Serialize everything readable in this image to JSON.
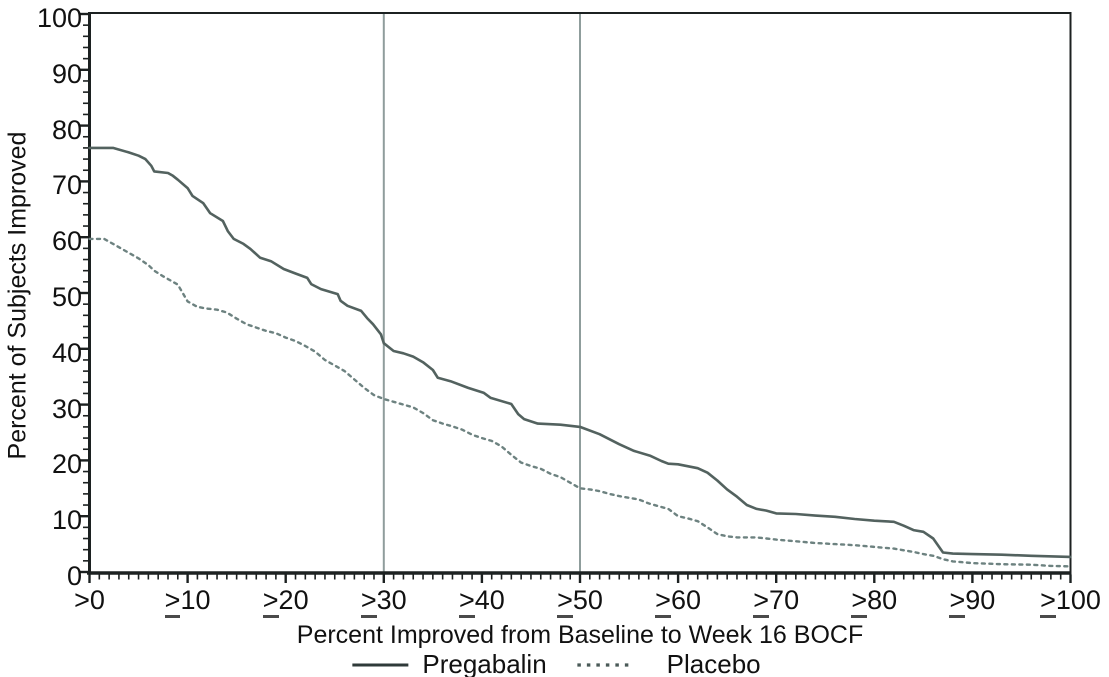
{
  "chart_data": {
    "type": "line",
    "title": "",
    "xlabel": "Percent Improved from Baseline to Week 16 BOCF",
    "ylabel": "Percent of Subjects Improved",
    "xlim": [
      0,
      100
    ],
    "ylim": [
      0,
      100
    ],
    "grid": false,
    "legend_position": "bottom-center",
    "x_major_ticks": [
      0,
      10,
      20,
      30,
      40,
      50,
      60,
      70,
      80,
      90,
      100
    ],
    "x_tick_labels": [
      {
        "prefix": ">",
        "gte": false,
        "text": "0"
      },
      {
        "prefix": ">",
        "gte": true,
        "text": "10"
      },
      {
        "prefix": ">",
        "gte": true,
        "text": "20"
      },
      {
        "prefix": ">",
        "gte": true,
        "text": "30"
      },
      {
        "prefix": ">",
        "gte": true,
        "text": "40"
      },
      {
        "prefix": ">",
        "gte": true,
        "text": "50"
      },
      {
        "prefix": ">",
        "gte": true,
        "text": "60"
      },
      {
        "prefix": ">",
        "gte": true,
        "text": "70"
      },
      {
        "prefix": ">",
        "gte": true,
        "text": "80"
      },
      {
        "prefix": ">",
        "gte": true,
        "text": "90"
      },
      {
        "prefix": ">",
        "gte": true,
        "text": "100"
      }
    ],
    "x_minor_step": 1,
    "y_major_ticks": [
      0,
      10,
      20,
      30,
      40,
      50,
      60,
      70,
      80,
      90,
      100
    ],
    "y_tick_labels": [
      "0",
      "10",
      "20",
      "30",
      "40",
      "50",
      "60",
      "70",
      "80",
      "90",
      "100"
    ],
    "y_minor_step": 2,
    "reference_lines_x": [
      30,
      50
    ],
    "reference_line_color": "#8f9d9c",
    "axis_color": "#1c2121",
    "text_color": "#111111",
    "series": [
      {
        "name": "Pregabalin",
        "style": "solid",
        "color": "#53625f",
        "legend_color": "#2f3a39",
        "points": [
          [
            0,
            76
          ],
          [
            2.4,
            76
          ],
          [
            4,
            75.2
          ],
          [
            5,
            74.6
          ],
          [
            5.7,
            74
          ],
          [
            6.3,
            72.8
          ],
          [
            6.6,
            71.8
          ],
          [
            8,
            71.5
          ],
          [
            8.5,
            71
          ],
          [
            9,
            70.3
          ],
          [
            10,
            68.8
          ],
          [
            10.5,
            67.4
          ],
          [
            11.6,
            66.1
          ],
          [
            12.3,
            64.3
          ],
          [
            13.6,
            62.9
          ],
          [
            14.1,
            61.1
          ],
          [
            14.7,
            59.7
          ],
          [
            15.7,
            58.8
          ],
          [
            16.4,
            57.9
          ],
          [
            17.4,
            56.3
          ],
          [
            18.5,
            55.7
          ],
          [
            19.8,
            54.3
          ],
          [
            21,
            53.5
          ],
          [
            22.2,
            52.7
          ],
          [
            22.6,
            51.6
          ],
          [
            23.6,
            50.7
          ],
          [
            25.3,
            49.8
          ],
          [
            25.6,
            48.6
          ],
          [
            26.3,
            47.7
          ],
          [
            27.7,
            46.8
          ],
          [
            28.3,
            45.5
          ],
          [
            28.9,
            44.4
          ],
          [
            29.7,
            42.6
          ],
          [
            30,
            41
          ],
          [
            31,
            39.6
          ],
          [
            32,
            39.2
          ],
          [
            33,
            38.6
          ],
          [
            34,
            37.6
          ],
          [
            35,
            36.2
          ],
          [
            35.5,
            34.8
          ],
          [
            36.8,
            34.2
          ],
          [
            38.6,
            33
          ],
          [
            40.2,
            32.1
          ],
          [
            40.9,
            31.2
          ],
          [
            43,
            30.1
          ],
          [
            43.7,
            28.3
          ],
          [
            44.3,
            27.4
          ],
          [
            45.7,
            26.6
          ],
          [
            48,
            26.4
          ],
          [
            50,
            26
          ],
          [
            52,
            24.7
          ],
          [
            54,
            22.9
          ],
          [
            55.5,
            21.7
          ],
          [
            57.2,
            20.8
          ],
          [
            58.3,
            19.9
          ],
          [
            59,
            19.4
          ],
          [
            60,
            19.3
          ],
          [
            62,
            18.6
          ],
          [
            63,
            17.8
          ],
          [
            64,
            16.4
          ],
          [
            65,
            14.8
          ],
          [
            66,
            13.5
          ],
          [
            67,
            12
          ],
          [
            68,
            11.3
          ],
          [
            69,
            11
          ],
          [
            70,
            10.5
          ],
          [
            72,
            10.4
          ],
          [
            74,
            10.1
          ],
          [
            76,
            9.9
          ],
          [
            78,
            9.5
          ],
          [
            80,
            9.2
          ],
          [
            82,
            9
          ],
          [
            83,
            8.3
          ],
          [
            84,
            7.5
          ],
          [
            85,
            7.2
          ],
          [
            86,
            6
          ],
          [
            87,
            3.5
          ],
          [
            88,
            3.3
          ],
          [
            90,
            3.2
          ],
          [
            93,
            3.1
          ],
          [
            96,
            2.9
          ],
          [
            100,
            2.7
          ]
        ]
      },
      {
        "name": "Placebo",
        "style": "dashed",
        "color": "#6d8280",
        "legend_color": "#4a5a58",
        "points": [
          [
            0,
            59.7
          ],
          [
            1.5,
            59.7
          ],
          [
            3,
            58.2
          ],
          [
            4,
            57.2
          ],
          [
            5,
            56.2
          ],
          [
            6,
            55
          ],
          [
            6.6,
            54
          ],
          [
            7.5,
            53
          ],
          [
            9,
            51.5
          ],
          [
            10,
            48.5
          ],
          [
            11,
            47.5
          ],
          [
            12,
            47.2
          ],
          [
            13,
            47
          ],
          [
            14,
            46.5
          ],
          [
            15,
            45.4
          ],
          [
            16,
            44.4
          ],
          [
            17,
            43.8
          ],
          [
            18,
            43.2
          ],
          [
            19,
            42.8
          ],
          [
            20,
            42
          ],
          [
            21,
            41.4
          ],
          [
            22,
            40.5
          ],
          [
            23,
            39.5
          ],
          [
            24,
            38
          ],
          [
            25,
            37
          ],
          [
            26,
            36
          ],
          [
            27,
            34.5
          ],
          [
            28,
            33
          ],
          [
            29,
            31.7
          ],
          [
            30,
            31
          ],
          [
            31,
            30.5
          ],
          [
            32,
            30
          ],
          [
            33,
            29.5
          ],
          [
            34,
            28.5
          ],
          [
            35,
            27.2
          ],
          [
            36,
            26.6
          ],
          [
            37,
            26.1
          ],
          [
            38,
            25.5
          ],
          [
            39,
            24.6
          ],
          [
            40,
            24
          ],
          [
            41,
            23.5
          ],
          [
            42,
            22.5
          ],
          [
            43,
            21
          ],
          [
            44,
            19.6
          ],
          [
            45,
            19
          ],
          [
            46,
            18.5
          ],
          [
            47,
            17.6
          ],
          [
            48,
            17
          ],
          [
            49,
            16
          ],
          [
            50,
            15
          ],
          [
            51,
            14.8
          ],
          [
            52,
            14.5
          ],
          [
            53,
            14
          ],
          [
            54,
            13.6
          ],
          [
            55,
            13.3
          ],
          [
            56,
            13
          ],
          [
            57,
            12.3
          ],
          [
            58,
            11.8
          ],
          [
            59,
            11.3
          ],
          [
            60,
            10
          ],
          [
            61,
            9.6
          ],
          [
            62,
            9.1
          ],
          [
            63,
            8
          ],
          [
            64,
            6.8
          ],
          [
            65,
            6.4
          ],
          [
            66,
            6.2
          ],
          [
            68,
            6.2
          ],
          [
            69,
            6
          ],
          [
            70,
            5.8
          ],
          [
            72,
            5.5
          ],
          [
            74,
            5.2
          ],
          [
            76,
            5
          ],
          [
            78,
            4.8
          ],
          [
            80,
            4.5
          ],
          [
            82,
            4.2
          ],
          [
            84,
            3.6
          ],
          [
            85,
            3.2
          ],
          [
            86,
            2.9
          ],
          [
            87,
            2.3
          ],
          [
            88,
            1.9
          ],
          [
            90,
            1.6
          ],
          [
            93,
            1.4
          ],
          [
            96,
            1.3
          ],
          [
            98,
            1.1
          ],
          [
            100,
            1
          ]
        ]
      }
    ]
  }
}
